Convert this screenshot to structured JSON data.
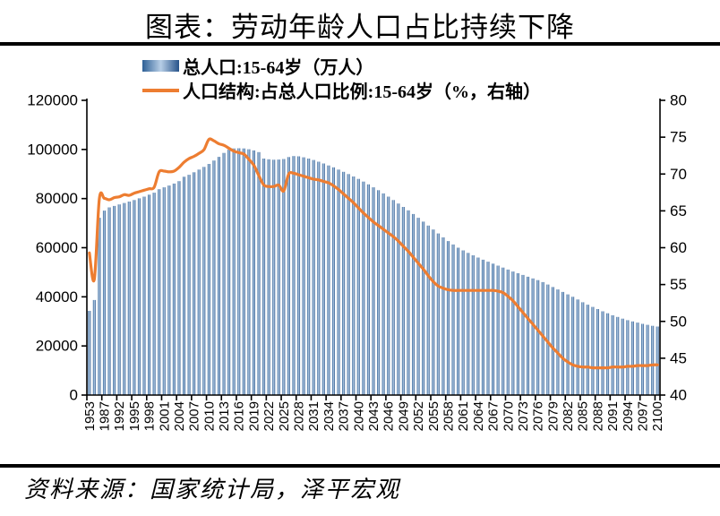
{
  "title": "图表：劳动年龄人口占比持续下降",
  "footer": "资料来源：国家统计局，泽平宏观",
  "legend": {
    "bar_label": "总人口:15-64岁（万人）",
    "line_label": "人口结构:占总人口比例:15-64岁（%，右轴）"
  },
  "colors": {
    "bar_dark_left": "#2E6096",
    "bar_light_mid": "#B7CEE6",
    "bar_dark_right": "#27538A",
    "line": "#ED7D31",
    "axis": "#000000",
    "rule": "#000000"
  },
  "chart_data": {
    "type": "bar+line",
    "title": "图表：劳动年龄人口占比持续下降",
    "x_label_every": 3,
    "x_tick_labels": [
      "1953",
      "1987",
      "1992",
      "1995",
      "1998",
      "2001",
      "2004",
      "2007",
      "2010",
      "2013",
      "2016",
      "2019",
      "2022",
      "2025",
      "2028",
      "2031",
      "2034",
      "2037",
      "2040",
      "2043",
      "2046",
      "2049",
      "2052",
      "2055",
      "2058",
      "2061",
      "2064",
      "2067",
      "2070",
      "2073",
      "2076",
      "2079",
      "2082",
      "2085",
      "2088",
      "2091",
      "2094",
      "2097",
      "2100"
    ],
    "left_axis": {
      "min": 0,
      "max": 120000,
      "step": 20000,
      "ticks": [
        "0",
        "20000",
        "40000",
        "60000",
        "80000",
        "100000",
        "120000"
      ]
    },
    "right_axis": {
      "min": 40,
      "max": 80,
      "step": 5,
      "ticks": [
        "40",
        "45",
        "50",
        "55",
        "60",
        "65",
        "70",
        "75",
        "80"
      ]
    },
    "grid": false,
    "legend_position": "top-left",
    "categories": [
      1953,
      1964,
      1982,
      1987,
      1990,
      1991,
      1992,
      1993,
      1994,
      1995,
      1996,
      1997,
      1998,
      1999,
      2000,
      2001,
      2002,
      2003,
      2004,
      2005,
      2006,
      2007,
      2008,
      2009,
      2010,
      2011,
      2012,
      2013,
      2014,
      2015,
      2016,
      2017,
      2018,
      2019,
      2020,
      2021,
      2022,
      2023,
      2024,
      2025,
      2026,
      2027,
      2028,
      2029,
      2030,
      2031,
      2032,
      2033,
      2034,
      2035,
      2036,
      2037,
      2038,
      2039,
      2040,
      2041,
      2042,
      2043,
      2044,
      2045,
      2046,
      2047,
      2048,
      2049,
      2050,
      2051,
      2052,
      2053,
      2054,
      2055,
      2056,
      2057,
      2058,
      2059,
      2060,
      2061,
      2062,
      2063,
      2064,
      2065,
      2066,
      2067,
      2068,
      2069,
      2070,
      2071,
      2072,
      2073,
      2074,
      2075,
      2076,
      2077,
      2078,
      2079,
      2080,
      2081,
      2082,
      2083,
      2084,
      2085,
      2086,
      2087,
      2088,
      2089,
      2090,
      2091,
      2092,
      2093,
      2094,
      2095,
      2096,
      2097,
      2098,
      2099,
      2100
    ],
    "series": [
      {
        "name": "总人口:15-64岁（万人）",
        "type": "bar",
        "axis": "left",
        "values": [
          34300,
          38700,
          72200,
          75100,
          76400,
          77000,
          77600,
          78200,
          78800,
          79400,
          80100,
          80800,
          81600,
          82400,
          83800,
          84600,
          85300,
          86100,
          87100,
          88900,
          89700,
          90700,
          91800,
          92900,
          94100,
          95500,
          97000,
          98600,
          99900,
          100400,
          100500,
          100400,
          100100,
          99600,
          98900,
          96300,
          96000,
          95800,
          95900,
          96100,
          96900,
          97300,
          97200,
          96800,
          96300,
          95700,
          95000,
          94300,
          93500,
          92700,
          91800,
          90900,
          90000,
          89000,
          88000,
          86900,
          85800,
          84600,
          83400,
          82100,
          80800,
          79400,
          78000,
          76600,
          75200,
          73700,
          72200,
          70600,
          69000,
          67400,
          65800,
          64200,
          62700,
          61300,
          60000,
          58900,
          57900,
          56900,
          56000,
          55100,
          54300,
          53500,
          52700,
          51900,
          51100,
          50300,
          49600,
          48900,
          48200,
          47500,
          46800,
          46000,
          45000,
          44000,
          43000,
          42000,
          41000,
          40000,
          38900,
          37800,
          36800,
          35900,
          35000,
          34100,
          33300,
          32500,
          31800,
          31100,
          30500,
          30000,
          29500,
          29000,
          28600,
          28200,
          27900
        ]
      },
      {
        "name": "人口结构:占总人口比例:15-64岁（%，右轴）",
        "type": "line",
        "axis": "right",
        "values": [
          59.3,
          55.7,
          66.6,
          66.7,
          66.5,
          66.8,
          66.9,
          67.2,
          67.1,
          67.4,
          67.6,
          67.8,
          68.0,
          68.2,
          70.3,
          70.4,
          70.3,
          70.4,
          70.9,
          71.6,
          72.1,
          72.4,
          72.8,
          73.3,
          74.7,
          74.5,
          74.1,
          73.9,
          73.5,
          73.1,
          72.9,
          72.7,
          72.0,
          71.2,
          69.8,
          68.5,
          68.3,
          68.3,
          68.5,
          67.7,
          70.0,
          70.1,
          69.9,
          69.7,
          69.5,
          69.3,
          69.2,
          69.0,
          68.8,
          68.4,
          67.9,
          67.3,
          66.7,
          66.1,
          65.4,
          64.7,
          64.1,
          63.5,
          63.0,
          62.5,
          62.0,
          61.5,
          60.9,
          60.2,
          59.5,
          58.7,
          57.9,
          57.1,
          56.2,
          55.4,
          54.8,
          54.5,
          54.3,
          54.2,
          54.2,
          54.2,
          54.2,
          54.2,
          54.2,
          54.2,
          54.2,
          54.2,
          54.1,
          53.9,
          53.4,
          52.8,
          52.0,
          51.2,
          50.4,
          49.6,
          48.8,
          48.0,
          47.2,
          46.4,
          45.7,
          45.0,
          44.5,
          44.1,
          43.9,
          43.8,
          43.8,
          43.7,
          43.7,
          43.7,
          43.7,
          43.8,
          43.8,
          43.8,
          43.9,
          43.9,
          44.0,
          44.0,
          44.0,
          44.1,
          44.1
        ]
      }
    ]
  }
}
